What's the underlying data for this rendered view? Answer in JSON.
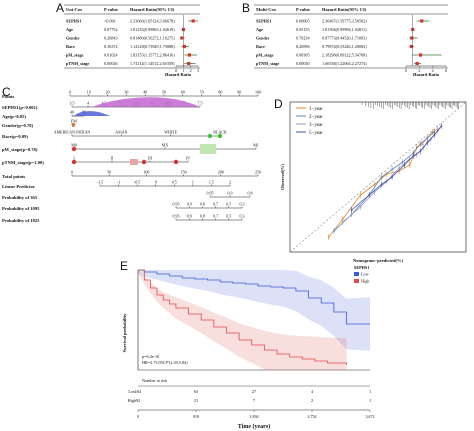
{
  "panel_labels": [
    "A",
    "B",
    "C",
    "D",
    "E"
  ],
  "chart_data": [
    {
      "type": "table",
      "panel": "A",
      "headers": [
        "Uni-Cox",
        "P value",
        "Hazard Ratio(95% CI)"
      ],
      "rows": [
        {
          "name": "SEPHS1",
          "p": "<0.001",
          "hr_text": "2.33660(1.65124,3.06678)",
          "hr": 2.34,
          "lo": 1.65,
          "hi": 3.07
        },
        {
          "name": "Age",
          "p": "0.07752",
          "hr_text": "1.01235(0.99865,1.02619)",
          "hr": 1.01,
          "lo": 1.0,
          "hi": 1.03
        },
        {
          "name": "Gender",
          "p": "0.26843",
          "hr_text": "0.81480(0.56272,1.16275)",
          "hr": 0.81,
          "lo": 0.56,
          "hi": 1.16
        },
        {
          "name": "Race",
          "p": "0.16372",
          "hr_text": "1.14128(0.73949,1.75888)",
          "hr": 1.14,
          "lo": 0.74,
          "hi": 1.76
        },
        {
          "name": "pM_stage",
          "p": "0.01024",
          "hr_text": "1.83155(1.15772,2.86416)",
          "hr": 1.83,
          "lo": 1.16,
          "hi": 2.86
        },
        {
          "name": "pTNM_stage",
          "p": "0.00026",
          "hr_text": "1.74112(1.14512,2.65359)",
          "hr": 1.74,
          "lo": 1.15,
          "hi": 2.65
        }
      ],
      "xlabel": "Hazard Ratio",
      "xlim": [
        0,
        3
      ],
      "ticks": [
        0,
        1,
        2,
        3
      ]
    },
    {
      "type": "table",
      "panel": "B",
      "headers": [
        "Multi-Cox",
        "P value",
        "Hazard Ratio(95% CI)"
      ],
      "rows": [
        {
          "name": "SEPHS1",
          "p": "0.00005",
          "hr_text": "2.36497(1.59775,3.50582)",
          "hr": 2.36,
          "lo": 1.6,
          "hi": 3.51
        },
        {
          "name": "Age",
          "p": "0.05155",
          "hr_text": "1.01394(0.99994,1.02811)",
          "hr": 1.01,
          "lo": 1.0,
          "hi": 1.03
        },
        {
          "name": "Gender",
          "p": "0.70234",
          "hr_text": "0.87773(0.44520,1.71003)",
          "hr": 0.88,
          "lo": 0.45,
          "hi": 1.71
        },
        {
          "name": "Race",
          "p": "0.26996",
          "hr_text": "0.79974(0.53246,1.20082)",
          "hr": 0.8,
          "lo": 0.53,
          "hi": 1.2
        },
        {
          "name": "pM_stage",
          "p": "0.08305",
          "hr_text": "2.18298(0.89122,5.34788)",
          "hr": 2.18,
          "lo": 0.89,
          "hi": 5.35
        },
        {
          "name": "pTNM_stage",
          "p": "0.00030",
          "hr_text": "1.66538(1.22064,2.27274)",
          "hr": 1.67,
          "lo": 1.22,
          "hi": 2.27
        }
      ],
      "xlabel": "Hazard Ratio",
      "xlim": [
        0,
        6
      ],
      "ticks": [
        0,
        2,
        4,
        6
      ]
    },
    {
      "type": "table",
      "panel": "C",
      "rows": [
        {
          "label": "Points",
          "ticks": [
            "0",
            "10",
            "20",
            "30",
            "40",
            "50",
            "60",
            "70",
            "80",
            "90",
            "100"
          ]
        },
        {
          "label": "SEPHS1(p<0.001)",
          "ticks": [
            "3.5",
            "4",
            "4.5",
            "5",
            "5.5",
            "6",
            "6.5",
            "7",
            "7.5"
          ]
        },
        {
          "label": "Age(p=0.05)",
          "ticks": [
            "40",
            "80"
          ]
        },
        {
          "label": "Gender(p=0.70)",
          "ticks": [
            "F",
            "M"
          ]
        },
        {
          "label": "Race(p=0.09)",
          "ticks": [
            "AMERICAN INDIAN",
            "ASIAN",
            "WHITE",
            "BLACK"
          ]
        },
        {
          "label": "pM_stage(p=0.76)",
          "ticks": [
            "M0",
            "MX",
            "M1"
          ]
        },
        {
          "label": "pTNM_stage(p=1.00)",
          "ticks": [
            "I",
            "II",
            "III",
            "IV"
          ]
        },
        {
          "label": "Total points",
          "ticks": [
            "0",
            "50",
            "100",
            "150",
            "200",
            "250"
          ]
        },
        {
          "label": "Linear Predictor",
          "ticks": [
            "-1.5",
            "-1",
            "-0.5",
            "0",
            "0.5",
            "1",
            "1.5",
            "2"
          ]
        },
        {
          "label": "Probability of 365",
          "ticks": [
            "0.95",
            "0.9",
            "0.8"
          ]
        },
        {
          "label": "Probability of 1095",
          "ticks": [
            "0.95",
            "0.9",
            "0.8",
            "0.7",
            "0.5",
            "0.3"
          ]
        },
        {
          "label": "Probability of 1825",
          "ticks": [
            "0.95",
            "0.9",
            "0.8",
            "0.7",
            "0.5",
            "0.3"
          ]
        }
      ]
    },
    {
      "type": "line",
      "panel": "D",
      "xlabel": "Nomogram−predicted(%)",
      "ylabel": "Observed(%)",
      "xlim": [
        0,
        100
      ],
      "ylim": [
        0,
        100
      ],
      "series": [
        {
          "name": "1−year",
          "color": "#e6862a",
          "x": [
            22,
            30,
            40,
            48,
            55,
            62,
            68,
            72,
            75,
            78,
            81,
            84
          ],
          "y": [
            10,
            22,
            38,
            45,
            52,
            54,
            58,
            70,
            72,
            76,
            80,
            82
          ]
        },
        {
          "name": "2−year",
          "color": "#5b87c4",
          "x": [
            25,
            35,
            45,
            52,
            58,
            64,
            70,
            74,
            78,
            82
          ],
          "y": [
            14,
            25,
            38,
            50,
            55,
            60,
            66,
            72,
            76,
            80
          ]
        },
        {
          "name": "3−year",
          "color": "#9c95cc",
          "x": [
            30,
            40,
            48,
            55,
            62,
            68,
            72,
            76,
            80,
            84
          ],
          "y": [
            20,
            30,
            40,
            47,
            56,
            62,
            65,
            70,
            75,
            81
          ]
        },
        {
          "name": "5−year",
          "color": "#3d4ea8",
          "x": [
            35,
            45,
            52,
            58,
            65,
            70,
            74,
            78,
            82,
            86
          ],
          "y": [
            28,
            38,
            45,
            50,
            58,
            64,
            67,
            73,
            78,
            84
          ]
        }
      ]
    },
    {
      "type": "line",
      "panel": "E",
      "legend_title": "SEPHS1",
      "xlabel": "Time (years)",
      "ylabel": "Survival probability",
      "annotation_p": "p=6.4e-10",
      "annotation_hr": "HR=3.73,95CI*(2.39,5.84)",
      "x_ticks": [
        "0",
        "918",
        "1,836",
        "2,754",
        "3,672"
      ],
      "xlim": [
        0,
        3672
      ],
      "ylim": [
        0,
        1
      ],
      "series": [
        {
          "name": "Low",
          "color": "#3d5bd9",
          "x": [
            0,
            100,
            300,
            500,
            700,
            900,
            1100,
            1300,
            1500,
            1700,
            1900,
            2100,
            2300,
            2500,
            2700,
            2900,
            3100,
            3300,
            3672
          ],
          "y": [
            1.0,
            0.98,
            0.96,
            0.94,
            0.92,
            0.91,
            0.9,
            0.88,
            0.87,
            0.86,
            0.84,
            0.83,
            0.82,
            0.79,
            0.72,
            0.67,
            0.58,
            0.46,
            0.46
          ]
        },
        {
          "name": "High",
          "color": "#e04a4a",
          "x": [
            0,
            100,
            200,
            300,
            400,
            500,
            600,
            800,
            1000,
            1200,
            1400,
            1600,
            1800,
            2000,
            2200,
            2400,
            2600,
            2800,
            3000,
            3300
          ],
          "y": [
            1.0,
            0.9,
            0.82,
            0.75,
            0.7,
            0.66,
            0.62,
            0.56,
            0.5,
            0.43,
            0.37,
            0.3,
            0.25,
            0.2,
            0.16,
            0.13,
            0.11,
            0.09,
            0.07,
            0.05
          ]
        }
      ],
      "risk_table_title": "Number at risk",
      "risk_table": [
        {
          "name": "Low",
          "values": [
            "164",
            "63",
            "27",
            "4",
            "1"
          ]
        },
        {
          "name": "High",
          "values": [
            "92",
            "21",
            "7",
            "2",
            "1"
          ]
        }
      ]
    }
  ]
}
